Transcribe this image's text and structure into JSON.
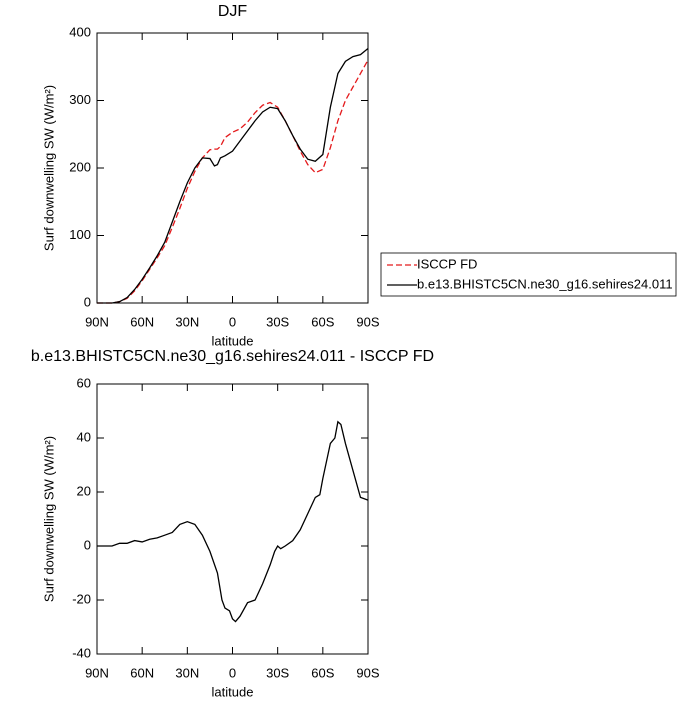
{
  "chart_data": [
    {
      "type": "line",
      "title": "DJF",
      "xlabel": "latitude",
      "ylabel": "Surf downwelling SW (W/m²)",
      "x": [
        90,
        85,
        80,
        75,
        70,
        65,
        60,
        55,
        50,
        45,
        40,
        35,
        30,
        25,
        20,
        15,
        12,
        10,
        8,
        5,
        0,
        -5,
        -10,
        -15,
        -20,
        -25,
        -30,
        -35,
        -40,
        -45,
        -50,
        -55,
        -60,
        -65,
        -70,
        -75,
        -80,
        -85,
        -90
      ],
      "series": [
        {
          "name": "ISCCP FD",
          "color": "#e41a1c",
          "dash": true,
          "values": [
            0,
            0,
            0,
            2,
            7,
            18,
            33,
            50,
            67,
            85,
            112,
            140,
            170,
            195,
            215,
            227,
            228,
            228,
            232,
            245,
            253,
            258,
            268,
            282,
            293,
            297,
            290,
            270,
            248,
            225,
            205,
            193,
            198,
            230,
            270,
            300,
            320,
            340,
            360
          ]
        },
        {
          "name": "b.e13.BHISTC5CN.ne30_g16.sehires24.011",
          "color": "#000000",
          "dash": false,
          "values": [
            0,
            0,
            0,
            2,
            8,
            20,
            35,
            52,
            70,
            90,
            120,
            150,
            178,
            200,
            215,
            214,
            203,
            205,
            215,
            218,
            225,
            240,
            255,
            270,
            283,
            290,
            288,
            270,
            248,
            228,
            213,
            210,
            220,
            290,
            340,
            358,
            365,
            368,
            377
          ]
        }
      ],
      "xlim": [
        90,
        -90
      ],
      "xticks": [
        {
          "value": 90,
          "label": "90N"
        },
        {
          "value": 60,
          "label": "60N"
        },
        {
          "value": 30,
          "label": "30N"
        },
        0,
        {
          "value": -30,
          "label": "30S"
        },
        {
          "value": -60,
          "label": "60S"
        },
        {
          "value": -90,
          "label": "90S"
        }
      ],
      "ylim": [
        0,
        400
      ],
      "yticks": [
        0,
        100,
        200,
        300,
        400
      ],
      "legend": "right"
    },
    {
      "type": "line",
      "title": "b.e13.BHISTC5CN.ne30_g16.sehires24.011 - ISCCP FD",
      "xlabel": "latitude",
      "ylabel": "Surf downwelling SW (W/m²)",
      "x": [
        90,
        85,
        80,
        75,
        70,
        65,
        60,
        55,
        50,
        45,
        40,
        35,
        30,
        25,
        20,
        15,
        10,
        7,
        5,
        2,
        0,
        -2,
        -5,
        -10,
        -15,
        -20,
        -25,
        -28,
        -30,
        -32,
        -35,
        -40,
        -45,
        -50,
        -55,
        -58,
        -60,
        -65,
        -68,
        -70,
        -72,
        -75,
        -80,
        -85,
        -90
      ],
      "series": [
        {
          "color": "#000000",
          "dash": false,
          "values": [
            0,
            0,
            0,
            1,
            1,
            2,
            1.5,
            2.5,
            3,
            4,
            5,
            8,
            9,
            8,
            4,
            -2,
            -10,
            -20,
            -23,
            -24,
            -27,
            -28,
            -26,
            -21,
            -20,
            -14,
            -7,
            -2,
            0,
            -1,
            0,
            2,
            6,
            12,
            18,
            19,
            25,
            38,
            40,
            46,
            45,
            38,
            28,
            18,
            17
          ]
        }
      ],
      "xlim": [
        90,
        -90
      ],
      "xticks": [
        {
          "value": 90,
          "label": "90N"
        },
        {
          "value": 60,
          "label": "60N"
        },
        {
          "value": 30,
          "label": "30N"
        },
        0,
        {
          "value": -30,
          "label": "30S"
        },
        {
          "value": -60,
          "label": "60S"
        },
        {
          "value": -90,
          "label": "90S"
        }
      ],
      "ylim": [
        -40,
        60
      ],
      "yticks": [
        -40,
        -20,
        0,
        20,
        40,
        60
      ]
    }
  ]
}
